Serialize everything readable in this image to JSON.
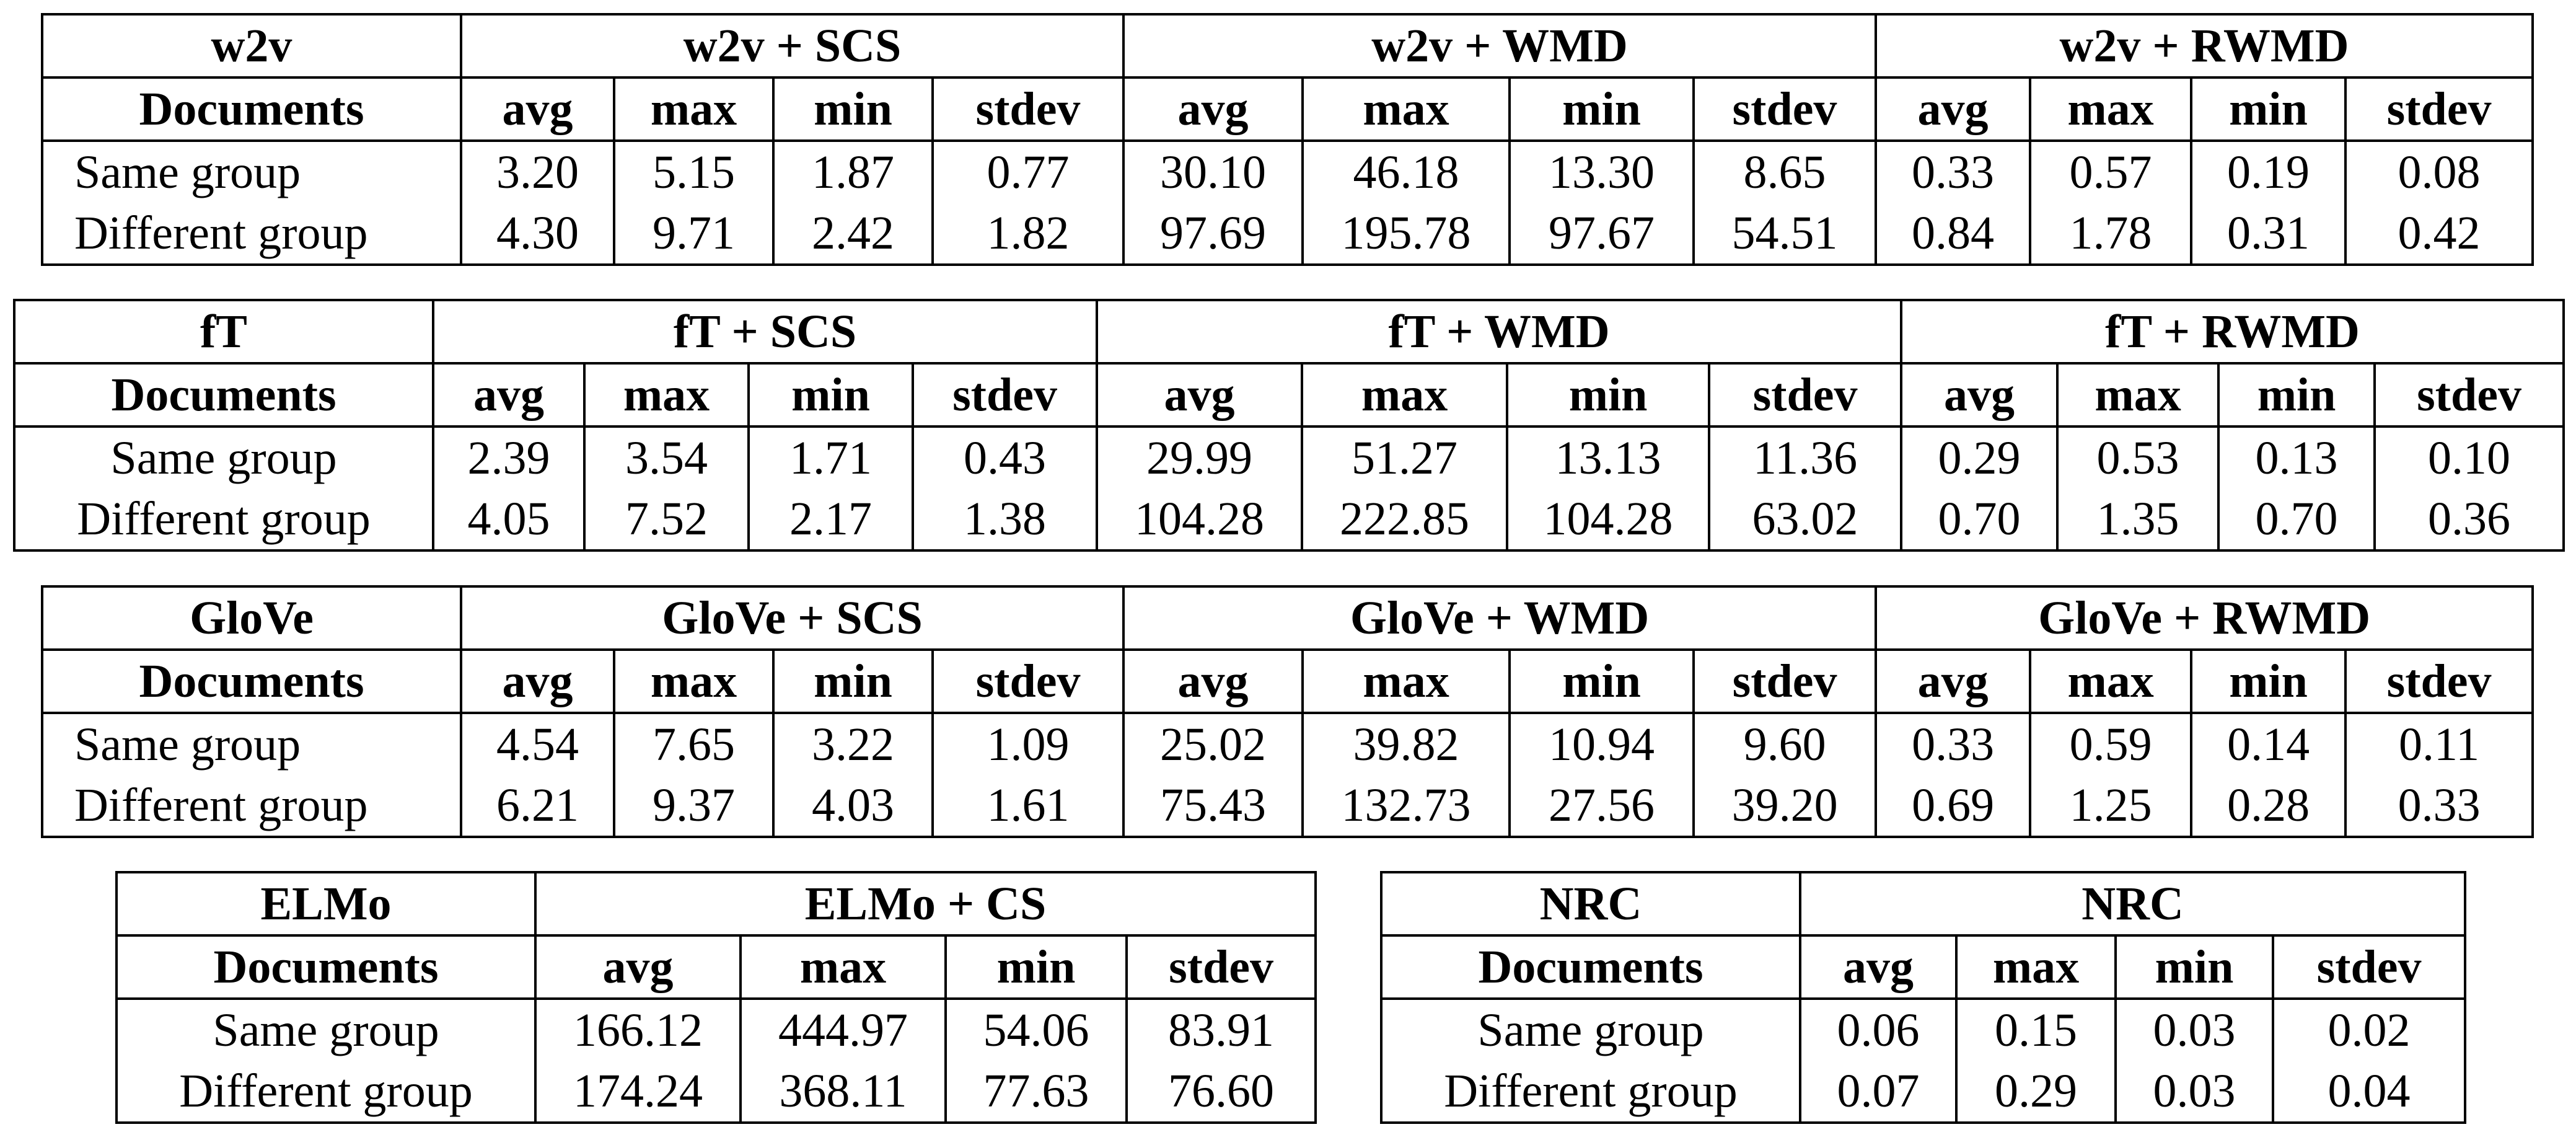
{
  "tables": [
    {
      "title": "w2v",
      "header": "Documents",
      "stats": [
        "avg",
        "max",
        "min",
        "stdev"
      ],
      "groups": [
        "w2v + SCS",
        "w2v + WMD",
        "w2v + RWMD"
      ],
      "rows": [
        {
          "label": "Same group",
          "values": [
            "3.20",
            "5.15",
            "1.87",
            "0.77",
            "30.10",
            "46.18",
            "13.30",
            "8.65",
            "0.33",
            "0.57",
            "0.19",
            "0.08"
          ]
        },
        {
          "label": "Different group",
          "values": [
            "4.30",
            "9.71",
            "2.42",
            "1.82",
            "97.69",
            "195.78",
            "97.67",
            "54.51",
            "0.84",
            "1.78",
            "0.31",
            "0.42"
          ]
        }
      ]
    },
    {
      "title": "fT",
      "header": "Documents",
      "stats": [
        "avg",
        "max",
        "min",
        "stdev"
      ],
      "groups": [
        "fT + SCS",
        "fT + WMD",
        "fT + RWMD"
      ],
      "rows": [
        {
          "label": "Same group",
          "values": [
            "2.39",
            "3.54",
            "1.71",
            "0.43",
            "29.99",
            "51.27",
            "13.13",
            "11.36",
            "0.29",
            "0.53",
            "0.13",
            "0.10"
          ]
        },
        {
          "label": "Different group",
          "values": [
            "4.05",
            "7.52",
            "2.17",
            "1.38",
            "104.28",
            "222.85",
            "104.28",
            "63.02",
            "0.70",
            "1.35",
            "0.70",
            "0.36"
          ]
        }
      ]
    },
    {
      "title": "GloVe",
      "header": "Documents",
      "stats": [
        "avg",
        "max",
        "min",
        "stdev"
      ],
      "groups": [
        "GloVe + SCS",
        "GloVe + WMD",
        "GloVe + RWMD"
      ],
      "rows": [
        {
          "label": "Same group",
          "values": [
            "4.54",
            "7.65",
            "3.22",
            "1.09",
            "25.02",
            "39.82",
            "10.94",
            "9.60",
            "0.33",
            "0.59",
            "0.14",
            "0.11"
          ]
        },
        {
          "label": "Different group",
          "values": [
            "6.21",
            "9.37",
            "4.03",
            "1.61",
            "75.43",
            "132.73",
            "27.56",
            "39.20",
            "0.69",
            "1.25",
            "0.28",
            "0.33"
          ]
        }
      ]
    },
    {
      "title": "ELMo",
      "header": "Documents",
      "stats": [
        "avg",
        "max",
        "min",
        "stdev"
      ],
      "groups": [
        "ELMo + CS"
      ],
      "rows": [
        {
          "label": "Same group",
          "values": [
            "166.12",
            "444.97",
            "54.06",
            "83.91"
          ]
        },
        {
          "label": "Different group",
          "values": [
            "174.24",
            "368.11",
            "77.63",
            "76.60"
          ]
        }
      ]
    },
    {
      "title": "NRC",
      "header": "Documents",
      "stats": [
        "avg",
        "max",
        "min",
        "stdev"
      ],
      "groups": [
        "NRC"
      ],
      "rows": [
        {
          "label": "Same group",
          "values": [
            "0.06",
            "0.15",
            "0.03",
            "0.02"
          ]
        },
        {
          "label": "Different group",
          "values": [
            "0.07",
            "0.29",
            "0.03",
            "0.04"
          ]
        }
      ]
    }
  ]
}
